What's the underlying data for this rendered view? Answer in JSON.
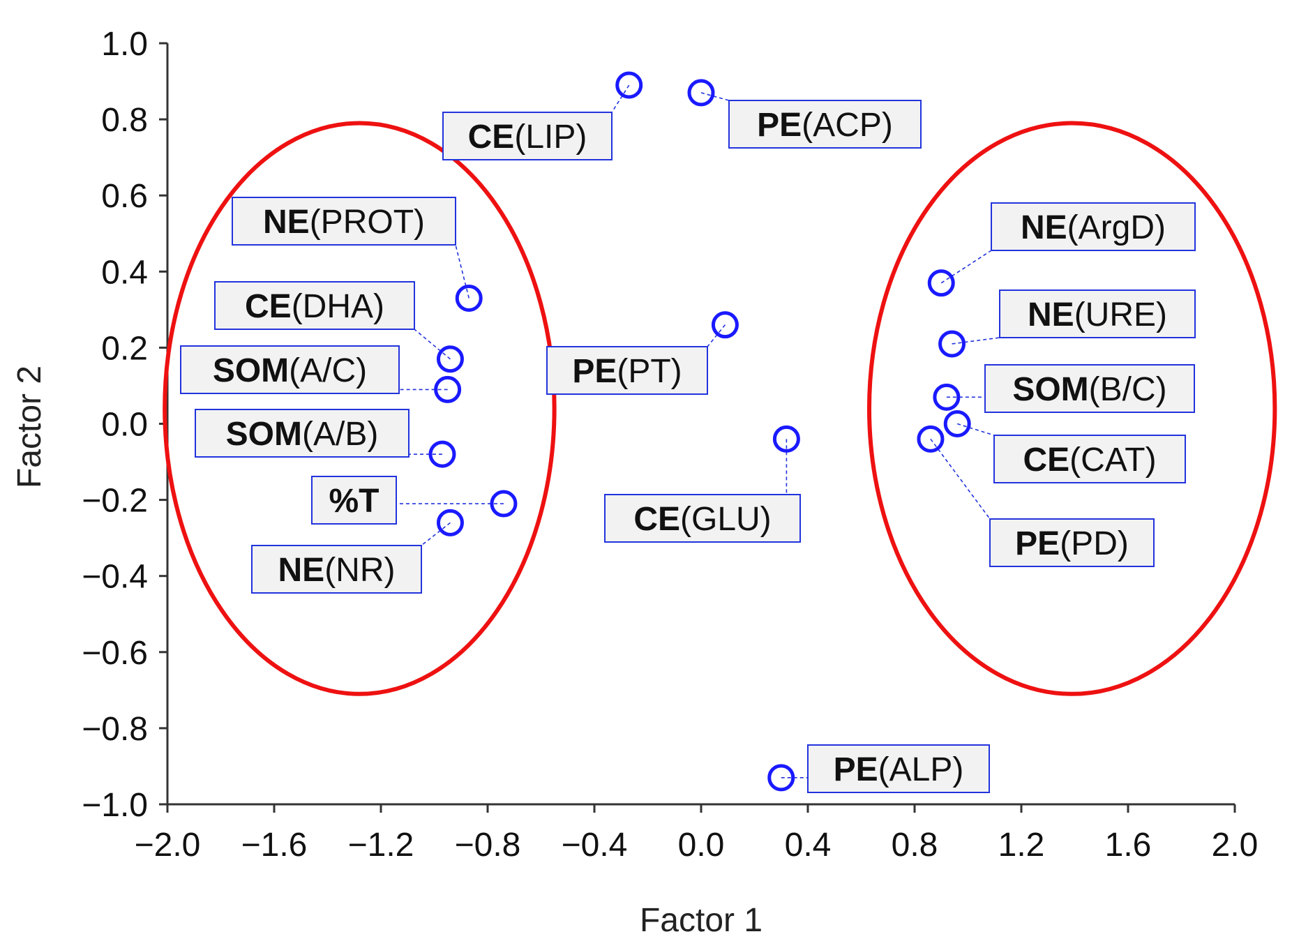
{
  "chart_data": {
    "type": "scatter",
    "xlabel": "Factor 1",
    "ylabel": "Factor 2",
    "xlim": [
      -2.0,
      2.0
    ],
    "ylim": [
      -1.0,
      1.0
    ],
    "x_ticks": [
      -2.0,
      -1.6,
      -1.2,
      -0.8,
      -0.4,
      0.0,
      0.4,
      0.8,
      1.2,
      1.6,
      2.0
    ],
    "x_tick_labels": [
      "−2.0",
      "−1.6",
      "−1.2",
      "−0.8",
      "−0.4",
      "0.0",
      "0.4",
      "0.8",
      "1.2",
      "1.6",
      "2.0"
    ],
    "y_ticks": [
      1.0,
      0.8,
      0.6,
      0.4,
      0.2,
      0.0,
      -0.2,
      -0.4,
      -0.6,
      -0.8,
      -1.0
    ],
    "y_tick_labels": [
      "1.0",
      "0.8",
      "0.6",
      "0.4",
      "0.2",
      "0.0",
      "−0.2",
      "−0.4",
      "−0.6",
      "−0.8",
      "−1.0"
    ],
    "grid": false,
    "marker_color": "#1a1aff",
    "label_border_color": "#2233dd",
    "label_fill_color": "#f2f2f2",
    "group_ellipse_color": "#ee1111",
    "points": [
      {
        "prefix": "CE",
        "suffix": "(LIP)",
        "x": -0.27,
        "y": 0.89
      },
      {
        "prefix": "PE",
        "suffix": "(ACP)",
        "x": 0.0,
        "y": 0.87
      },
      {
        "prefix": "NE",
        "suffix": "(PROT)",
        "x": -0.87,
        "y": 0.33
      },
      {
        "prefix": "CE",
        "suffix": "(DHA)",
        "x": -0.94,
        "y": 0.17
      },
      {
        "prefix": "SOM",
        "suffix": "(A/C)",
        "x": -0.95,
        "y": 0.09
      },
      {
        "prefix": "SOM",
        "suffix": "(A/B)",
        "x": -0.97,
        "y": -0.08
      },
      {
        "prefix": "%T",
        "suffix": "",
        "x": -0.74,
        "y": -0.21
      },
      {
        "prefix": "NE",
        "suffix": "(NR)",
        "x": -0.94,
        "y": -0.26
      },
      {
        "prefix": "PE",
        "suffix": "(PT)",
        "x": 0.09,
        "y": 0.26
      },
      {
        "prefix": "CE",
        "suffix": "(GLU)",
        "x": 0.32,
        "y": -0.04
      },
      {
        "prefix": "PE",
        "suffix": "(ALP)",
        "x": 0.3,
        "y": -0.93
      },
      {
        "prefix": "NE",
        "suffix": "(ArgD)",
        "x": 0.9,
        "y": 0.37
      },
      {
        "prefix": "NE",
        "suffix": "(URE)",
        "x": 0.94,
        "y": 0.21
      },
      {
        "prefix": "SOM",
        "suffix": "(B/C)",
        "x": 0.92,
        "y": 0.07
      },
      {
        "prefix": "CE",
        "suffix": "(CAT)",
        "x": 0.96,
        "y": 0.0
      },
      {
        "prefix": "PE",
        "suffix": "(PD)",
        "x": 0.86,
        "y": -0.04
      }
    ],
    "groups": [
      {
        "cx": -1.28,
        "cy": 0.04,
        "rx": 0.73,
        "ry": 0.75
      },
      {
        "cx": 1.39,
        "cy": 0.04,
        "rx": 0.76,
        "ry": 0.75
      }
    ]
  }
}
